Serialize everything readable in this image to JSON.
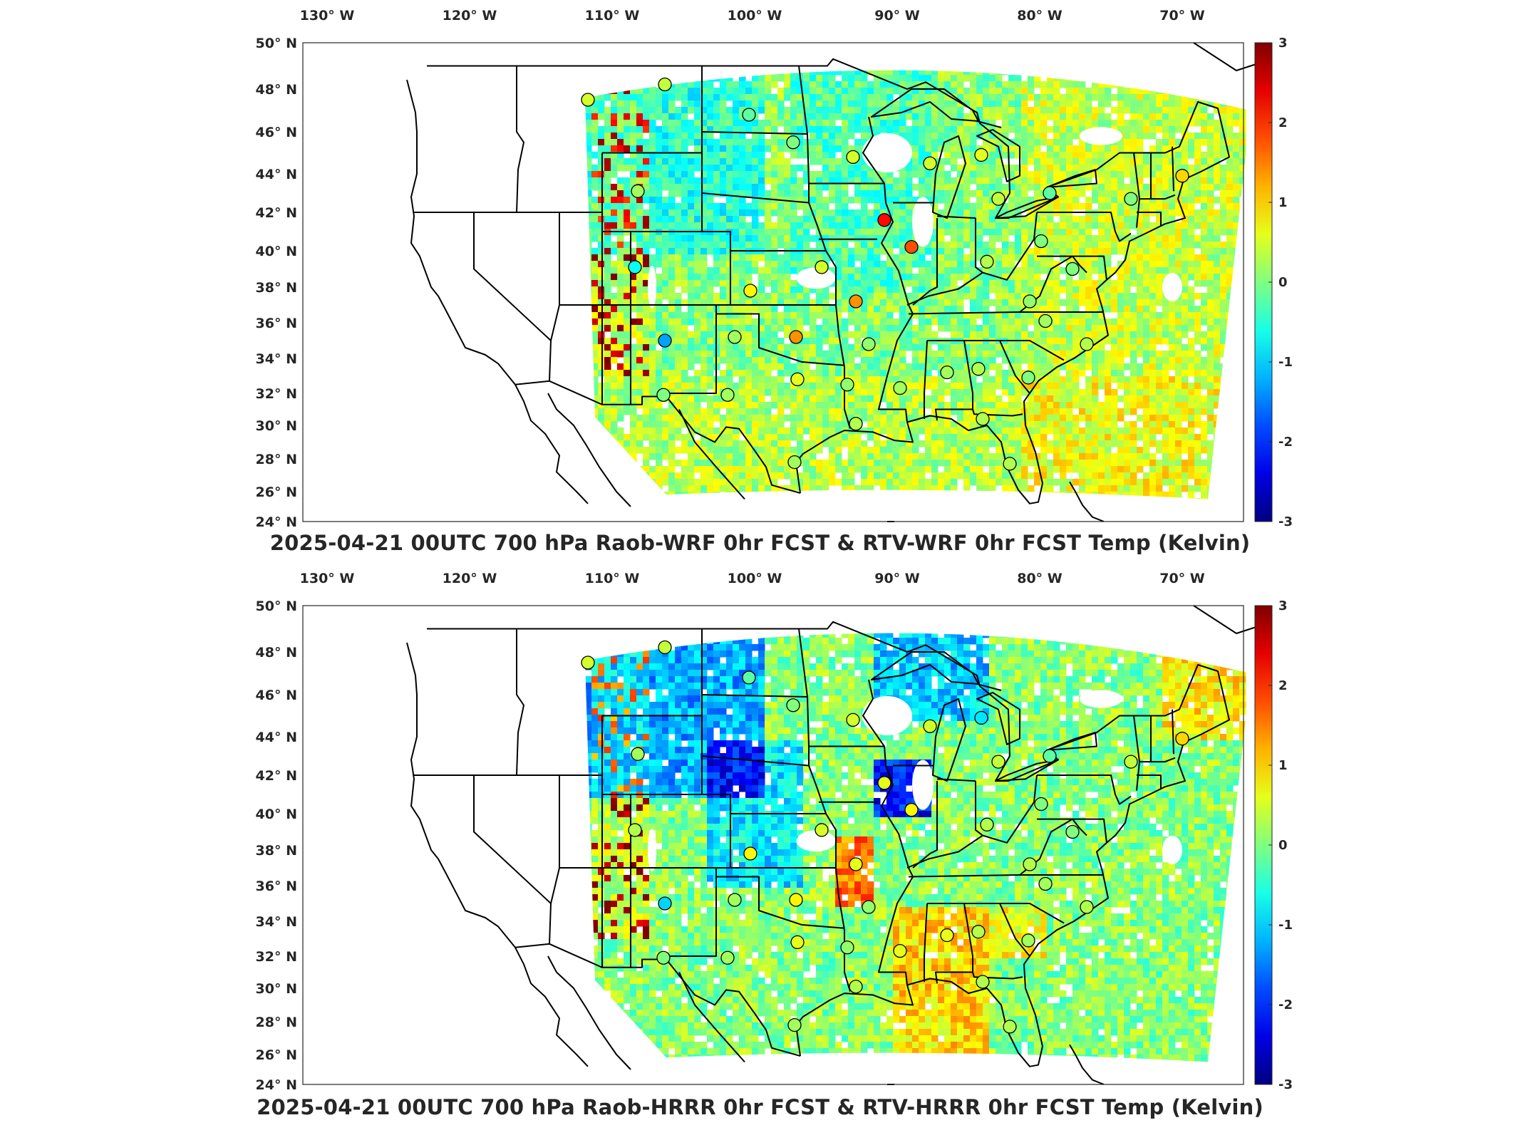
{
  "panels": [
    {
      "title": "2025-04-21 00UTC 700 hPa Raob-WRF 0hr FCST & RTV-WRF 0hr FCST Temp (Kelvin)",
      "lon_ticks": [
        "130° W",
        "120° W",
        "110° W",
        "100° W",
        "90° W",
        "80° W",
        "70° W"
      ],
      "lat_ticks": [
        "50° N",
        "48° N",
        "46° N",
        "44° N",
        "42° N",
        "40° N",
        "38° N",
        "36° N",
        "34° N",
        "32° N",
        "30° N",
        "28° N",
        "26° N",
        "24° N"
      ],
      "colorbar_ticks": [
        "3",
        "2",
        "1",
        "0",
        "-1",
        "-2",
        "-3"
      ]
    },
    {
      "title": "2025-04-21 00UTC 700 hPa Raob-HRRR 0hr FCST & RTV-HRRR 0hr FCST Temp (Kelvin)",
      "lon_ticks": [
        "130° W",
        "120° W",
        "110° W",
        "100° W",
        "90° W",
        "80° W",
        "70° W"
      ],
      "lat_ticks": [
        "50° N",
        "48° N",
        "46° N",
        "44° N",
        "42° N",
        "40° N",
        "38° N",
        "36° N",
        "34° N",
        "32° N",
        "30° N",
        "28° N",
        "26° N",
        "24° N"
      ],
      "colorbar_ticks": [
        "3",
        "2",
        "1",
        "0",
        "-1",
        "-2",
        "-3"
      ]
    }
  ],
  "chart_data": [
    {
      "type": "heatmap",
      "title": "2025-04-21 00UTC 700 hPa Raob-WRF 0hr FCST & RTV-WRF 0hr FCST Temp (Kelvin)",
      "colorbar": {
        "min": -3,
        "max": 3,
        "colormap": "jet",
        "ticks": [
          3,
          2,
          1,
          0,
          -1,
          -2,
          -3
        ]
      },
      "lon_range": [
        -132,
        -66
      ],
      "lat_range": [
        24,
        50
      ],
      "raob_points": [
        {
          "lon": -112.0,
          "lat": 47.5,
          "value": 0.5
        },
        {
          "lon": -106.6,
          "lat": 48.2,
          "value": 0.4
        },
        {
          "lon": -100.7,
          "lat": 46.8,
          "value": -0.2
        },
        {
          "lon": -97.6,
          "lat": 45.5,
          "value": 0.0
        },
        {
          "lon": -93.4,
          "lat": 44.8,
          "value": 0.5
        },
        {
          "lon": -88.0,
          "lat": 44.5,
          "value": 0.5
        },
        {
          "lon": -84.4,
          "lat": 44.9,
          "value": 0.6
        },
        {
          "lon": -108.5,
          "lat": 43.1,
          "value": 0.2
        },
        {
          "lon": -91.2,
          "lat": 41.6,
          "value": 2.2
        },
        {
          "lon": -89.3,
          "lat": 40.2,
          "value": 1.8
        },
        {
          "lon": -83.2,
          "lat": 42.7,
          "value": 0.4
        },
        {
          "lon": -79.6,
          "lat": 43.0,
          "value": -0.2
        },
        {
          "lon": -73.9,
          "lat": 42.7,
          "value": 0.0
        },
        {
          "lon": -70.3,
          "lat": 43.9,
          "value": 1.0
        },
        {
          "lon": -108.7,
          "lat": 39.1,
          "value": -0.7
        },
        {
          "lon": -95.6,
          "lat": 39.1,
          "value": 0.5
        },
        {
          "lon": -100.6,
          "lat": 37.8,
          "value": 0.8
        },
        {
          "lon": -93.2,
          "lat": 37.2,
          "value": 1.4
        },
        {
          "lon": -84.0,
          "lat": 39.4,
          "value": 0.3
        },
        {
          "lon": -80.2,
          "lat": 40.5,
          "value": 0.0
        },
        {
          "lon": -81.0,
          "lat": 37.2,
          "value": 0.1
        },
        {
          "lon": -78.0,
          "lat": 39.0,
          "value": 0.0
        },
        {
          "lon": -106.6,
          "lat": 35.0,
          "value": -1.3
        },
        {
          "lon": -101.7,
          "lat": 35.2,
          "value": 0.2
        },
        {
          "lon": -97.4,
          "lat": 35.2,
          "value": 1.4
        },
        {
          "lon": -92.3,
          "lat": 34.8,
          "value": 0.1
        },
        {
          "lon": -79.9,
          "lat": 36.1,
          "value": 0.2
        },
        {
          "lon": -77.0,
          "lat": 34.8,
          "value": 0.3
        },
        {
          "lon": -106.7,
          "lat": 31.9,
          "value": 0.0
        },
        {
          "lon": -102.2,
          "lat": 31.9,
          "value": 0.2
        },
        {
          "lon": -97.3,
          "lat": 32.8,
          "value": 0.6
        },
        {
          "lon": -93.8,
          "lat": 32.5,
          "value": 0.1
        },
        {
          "lon": -90.1,
          "lat": 32.3,
          "value": 0.2
        },
        {
          "lon": -86.8,
          "lat": 33.2,
          "value": 0.2
        },
        {
          "lon": -84.6,
          "lat": 33.4,
          "value": 0.3
        },
        {
          "lon": -81.1,
          "lat": 32.9,
          "value": 0.0
        },
        {
          "lon": -93.2,
          "lat": 30.1,
          "value": 0.3
        },
        {
          "lon": -84.3,
          "lat": 30.4,
          "value": 0.3
        },
        {
          "lon": -97.5,
          "lat": 27.8,
          "value": 0.2
        },
        {
          "lon": -82.4,
          "lat": 27.7,
          "value": 0.3
        }
      ]
    },
    {
      "type": "heatmap",
      "title": "2025-04-21 00UTC 700 hPa Raob-HRRR 0hr FCST & RTV-HRRR 0hr FCST Temp (Kelvin)",
      "colorbar": {
        "min": -3,
        "max": 3,
        "colormap": "jet",
        "ticks": [
          3,
          2,
          1,
          0,
          -1,
          -2,
          -3
        ]
      },
      "lon_range": [
        -132,
        -66
      ],
      "lat_range": [
        24,
        50
      ],
      "raob_points": [
        {
          "lon": -112.0,
          "lat": 47.5,
          "value": 0.5
        },
        {
          "lon": -106.6,
          "lat": 48.2,
          "value": 0.4
        },
        {
          "lon": -100.7,
          "lat": 46.8,
          "value": -0.2
        },
        {
          "lon": -97.6,
          "lat": 45.5,
          "value": 0.0
        },
        {
          "lon": -93.4,
          "lat": 44.8,
          "value": 0.5
        },
        {
          "lon": -88.0,
          "lat": 44.5,
          "value": 0.5
        },
        {
          "lon": -84.4,
          "lat": 44.9,
          "value": -0.9
        },
        {
          "lon": -108.5,
          "lat": 43.1,
          "value": 0.2
        },
        {
          "lon": -91.2,
          "lat": 41.6,
          "value": 0.6
        },
        {
          "lon": -89.3,
          "lat": 40.2,
          "value": 0.8
        },
        {
          "lon": -83.2,
          "lat": 42.7,
          "value": 0.4
        },
        {
          "lon": -79.6,
          "lat": 43.0,
          "value": -0.2
        },
        {
          "lon": -73.9,
          "lat": 42.7,
          "value": 0.4
        },
        {
          "lon": -70.3,
          "lat": 43.9,
          "value": 1.0
        },
        {
          "lon": -108.7,
          "lat": 39.1,
          "value": 0.3
        },
        {
          "lon": -95.6,
          "lat": 39.1,
          "value": 0.5
        },
        {
          "lon": -100.6,
          "lat": 37.8,
          "value": 0.8
        },
        {
          "lon": -93.2,
          "lat": 37.2,
          "value": 0.6
        },
        {
          "lon": -84.0,
          "lat": 39.4,
          "value": 0.3
        },
        {
          "lon": -80.2,
          "lat": 40.5,
          "value": 0.0
        },
        {
          "lon": -81.0,
          "lat": 37.2,
          "value": 0.3
        },
        {
          "lon": -78.0,
          "lat": 39.0,
          "value": 0.0
        },
        {
          "lon": -106.6,
          "lat": 35.0,
          "value": -1.0
        },
        {
          "lon": -101.7,
          "lat": 35.2,
          "value": 0.2
        },
        {
          "lon": -97.4,
          "lat": 35.2,
          "value": 0.8
        },
        {
          "lon": -92.3,
          "lat": 34.8,
          "value": 0.1
        },
        {
          "lon": -79.9,
          "lat": 36.1,
          "value": 0.2
        },
        {
          "lon": -77.0,
          "lat": 34.8,
          "value": 0.3
        },
        {
          "lon": -106.7,
          "lat": 31.9,
          "value": 0.0
        },
        {
          "lon": -102.2,
          "lat": 31.9,
          "value": 0.2
        },
        {
          "lon": -97.3,
          "lat": 32.8,
          "value": 0.6
        },
        {
          "lon": -93.8,
          "lat": 32.5,
          "value": 0.1
        },
        {
          "lon": -90.1,
          "lat": 32.3,
          "value": 0.6
        },
        {
          "lon": -86.8,
          "lat": 33.2,
          "value": 0.6
        },
        {
          "lon": -84.6,
          "lat": 33.4,
          "value": 0.3
        },
        {
          "lon": -81.1,
          "lat": 32.9,
          "value": 0.2
        },
        {
          "lon": -93.2,
          "lat": 30.1,
          "value": 0.3
        },
        {
          "lon": -84.3,
          "lat": 30.4,
          "value": 0.3
        },
        {
          "lon": -97.5,
          "lat": 27.8,
          "value": 0.2
        },
        {
          "lon": -82.4,
          "lat": 27.7,
          "value": 0.3
        }
      ]
    }
  ]
}
